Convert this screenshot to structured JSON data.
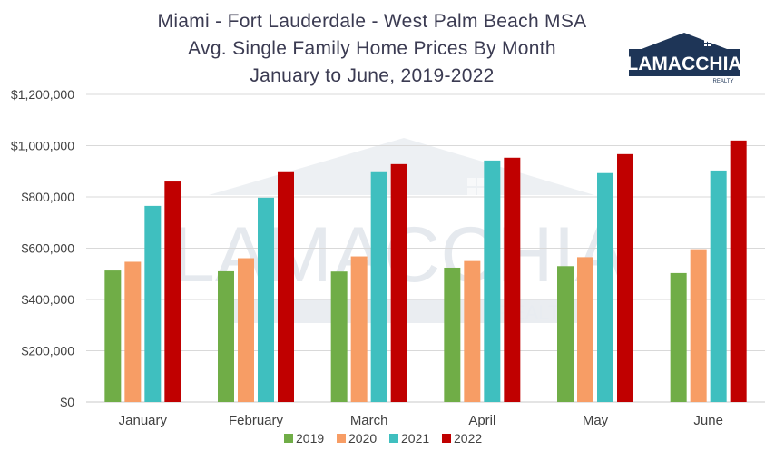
{
  "chart_data": {
    "type": "bar",
    "title": "Miami - Fort Lauderdale - West Palm Beach MSA",
    "subtitle": "Avg. Single Family Home Prices By Month",
    "subtitle2": "January to June, 2019-2022",
    "categories": [
      "January",
      "February",
      "March",
      "April",
      "May",
      "June"
    ],
    "series": [
      {
        "name": "2019",
        "color": "#70ad47",
        "values": [
          513000,
          510000,
          509000,
          524000,
          530000,
          503000
        ]
      },
      {
        "name": "2020",
        "color": "#f79d65",
        "values": [
          547000,
          561000,
          568000,
          550000,
          565000,
          596000
        ]
      },
      {
        "name": "2021",
        "color": "#3fbfbf",
        "values": [
          765000,
          797000,
          900000,
          942000,
          893000,
          903000
        ]
      },
      {
        "name": "2022",
        "color": "#c00000",
        "values": [
          860000,
          900000,
          928000,
          953000,
          967000,
          1020000
        ]
      }
    ],
    "ylim": [
      0,
      1200000
    ],
    "yticks": [
      "$0",
      "$200,000",
      "$400,000",
      "$600,000",
      "$800,000",
      "$1,000,000",
      "$1,200,000"
    ],
    "grid": true,
    "legend_position": "bottom"
  },
  "logo": {
    "text": "LAMACCHIA",
    "subtext": "REALTY",
    "color": "#1e3557"
  },
  "watermark": {
    "text": "LAMACCHIA",
    "subtext": "REALTY"
  }
}
